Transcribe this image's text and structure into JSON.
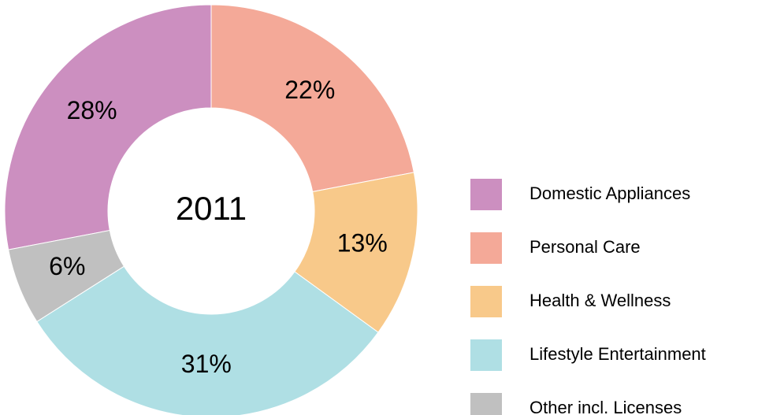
{
  "chart_data": {
    "type": "donut",
    "center_label": "2011",
    "categories": [
      "Domestic Appliances",
      "Personal Care",
      "Health & Wellness",
      "Lifestyle Entertainment",
      "Other incl. Licenses"
    ],
    "values": [
      28,
      22,
      13,
      31,
      6
    ],
    "value_labels": [
      "28%",
      "22%",
      "13%",
      "31%",
      "6%"
    ],
    "colors": [
      "#cc8fc0",
      "#f4a998",
      "#f8c98a",
      "#afdfe4",
      "#c0c0c0"
    ],
    "legend": "right"
  }
}
